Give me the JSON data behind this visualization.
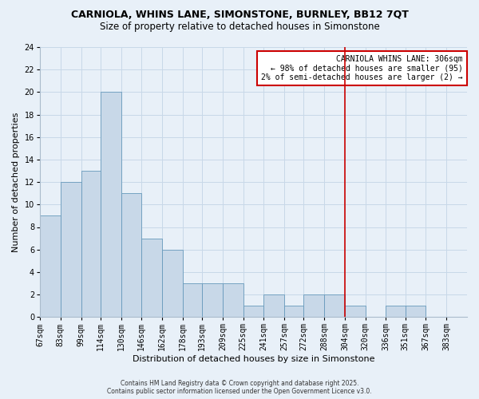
{
  "title": "CARNIOLA, WHINS LANE, SIMONSTONE, BURNLEY, BB12 7QT",
  "subtitle": "Size of property relative to detached houses in Simonstone",
  "xlabel": "Distribution of detached houses by size in Simonstone",
  "ylabel": "Number of detached properties",
  "bin_labels": [
    "67sqm",
    "83sqm",
    "99sqm",
    "114sqm",
    "130sqm",
    "146sqm",
    "162sqm",
    "178sqm",
    "193sqm",
    "209sqm",
    "225sqm",
    "241sqm",
    "257sqm",
    "272sqm",
    "288sqm",
    "304sqm",
    "320sqm",
    "336sqm",
    "351sqm",
    "367sqm",
    "383sqm"
  ],
  "bin_edges": [
    67,
    83,
    99,
    114,
    130,
    146,
    162,
    178,
    193,
    209,
    225,
    241,
    257,
    272,
    288,
    304,
    320,
    336,
    351,
    367,
    383
  ],
  "counts": [
    9,
    12,
    13,
    20,
    11,
    7,
    6,
    3,
    3,
    3,
    1,
    2,
    1,
    2,
    2,
    1,
    0,
    1,
    1,
    0
  ],
  "bar_color": "#c8d8e8",
  "bar_edge_color": "#6699bb",
  "vline_x": 304,
  "vline_color": "#cc0000",
  "annotation_text": "CARNIOLA WHINS LANE: 306sqm\n← 98% of detached houses are smaller (95)\n2% of semi-detached houses are larger (2) →",
  "annotation_box_color": "#ffffff",
  "annotation_box_edge": "#cc0000",
  "ylim": [
    0,
    24
  ],
  "yticks": [
    0,
    2,
    4,
    6,
    8,
    10,
    12,
    14,
    16,
    18,
    20,
    22,
    24
  ],
  "grid_color": "#c8d8e8",
  "background_color": "#e8f0f8",
  "footer_line1": "Contains HM Land Registry data © Crown copyright and database right 2025.",
  "footer_line2": "Contains public sector information licensed under the Open Government Licence v3.0.",
  "title_fontsize": 9,
  "subtitle_fontsize": 8.5,
  "axis_label_fontsize": 8,
  "tick_fontsize": 7,
  "annotation_fontsize": 7,
  "footer_fontsize": 5.5
}
